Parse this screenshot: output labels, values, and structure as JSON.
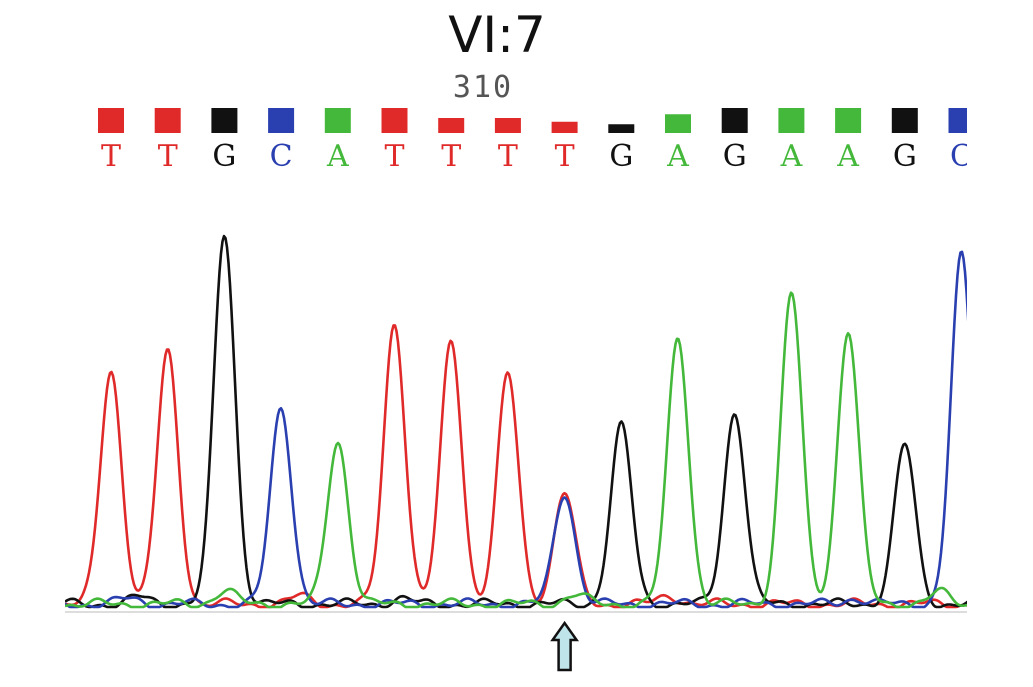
{
  "title": "VI:7",
  "position_label": "310",
  "colors": {
    "T": "#e02a2a",
    "G": "#111111",
    "C": "#2a3fb0",
    "A": "#44b83a",
    "arrow_fill": "#bfe4ea",
    "arrow_stroke": "#111111",
    "axis": "#bbbbbb"
  },
  "arrow_icon": "up-arrow-icon",
  "chart_data": {
    "type": "line",
    "title": "VI:7",
    "xlabel": "",
    "ylabel": "",
    "grid": false,
    "position_label": "310",
    "bases": [
      "T",
      "T",
      "G",
      "C",
      "A",
      "T",
      "T",
      "T",
      "T",
      "G",
      "A",
      "G",
      "A",
      "A",
      "G",
      "C"
    ],
    "quality": [
      1.0,
      1.0,
      1.0,
      1.0,
      1.0,
      1.0,
      0.6,
      0.6,
      0.45,
      0.35,
      0.75,
      1.0,
      1.0,
      1.0,
      1.0,
      1.0
    ],
    "ylim": [
      0,
      100
    ],
    "peaks": [
      {
        "index": 0,
        "base": "T",
        "height": 63
      },
      {
        "index": 1,
        "base": "T",
        "height": 68
      },
      {
        "index": 2,
        "base": "G",
        "height": 100
      },
      {
        "index": 3,
        "base": "C",
        "height": 53
      },
      {
        "index": 4,
        "base": "A",
        "height": 44
      },
      {
        "index": 5,
        "base": "T",
        "height": 76
      },
      {
        "index": 6,
        "base": "T",
        "height": 71
      },
      {
        "index": 7,
        "base": "T",
        "height": 62
      },
      {
        "index": 8,
        "base": "T",
        "height": 30,
        "overlap": "C",
        "overlap_height": 30
      },
      {
        "index": 9,
        "base": "G",
        "height": 48
      },
      {
        "index": 10,
        "base": "A",
        "height": 72
      },
      {
        "index": 11,
        "base": "G",
        "height": 52
      },
      {
        "index": 12,
        "base": "A",
        "height": 84
      },
      {
        "index": 13,
        "base": "A",
        "height": 74
      },
      {
        "index": 14,
        "base": "G",
        "height": 43
      },
      {
        "index": 15,
        "base": "C",
        "height": 94
      }
    ],
    "marked_index": 8
  }
}
